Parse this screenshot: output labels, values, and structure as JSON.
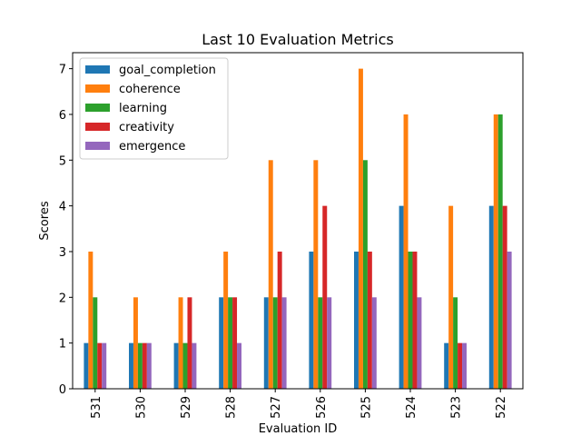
{
  "chart_data": {
    "type": "bar",
    "title": "Last 10 Evaluation Metrics",
    "xlabel": "Evaluation ID",
    "ylabel": "Scores",
    "categories": [
      "531",
      "530",
      "529",
      "528",
      "527",
      "526",
      "525",
      "524",
      "523",
      "522"
    ],
    "ylim": [
      0,
      7.35
    ],
    "yticks": [
      "0",
      "1",
      "2",
      "3",
      "4",
      "5",
      "6",
      "7"
    ],
    "grid": false,
    "legend_position": "top-left",
    "series": [
      {
        "name": "goal_completion",
        "color": "#1f77b4",
        "values": [
          1,
          1,
          1,
          2,
          2,
          3,
          3,
          4,
          1,
          4
        ]
      },
      {
        "name": "coherence",
        "color": "#ff7f0e",
        "values": [
          3,
          2,
          2,
          3,
          5,
          5,
          7,
          6,
          4,
          6
        ]
      },
      {
        "name": "learning",
        "color": "#2ca02c",
        "values": [
          2,
          1,
          1,
          2,
          2,
          2,
          5,
          3,
          2,
          6
        ]
      },
      {
        "name": "creativity",
        "color": "#d62728",
        "values": [
          1,
          1,
          2,
          2,
          3,
          4,
          3,
          3,
          1,
          4
        ]
      },
      {
        "name": "emergence",
        "color": "#9467bd",
        "values": [
          1,
          1,
          1,
          1,
          2,
          2,
          2,
          2,
          1,
          3
        ]
      }
    ]
  }
}
